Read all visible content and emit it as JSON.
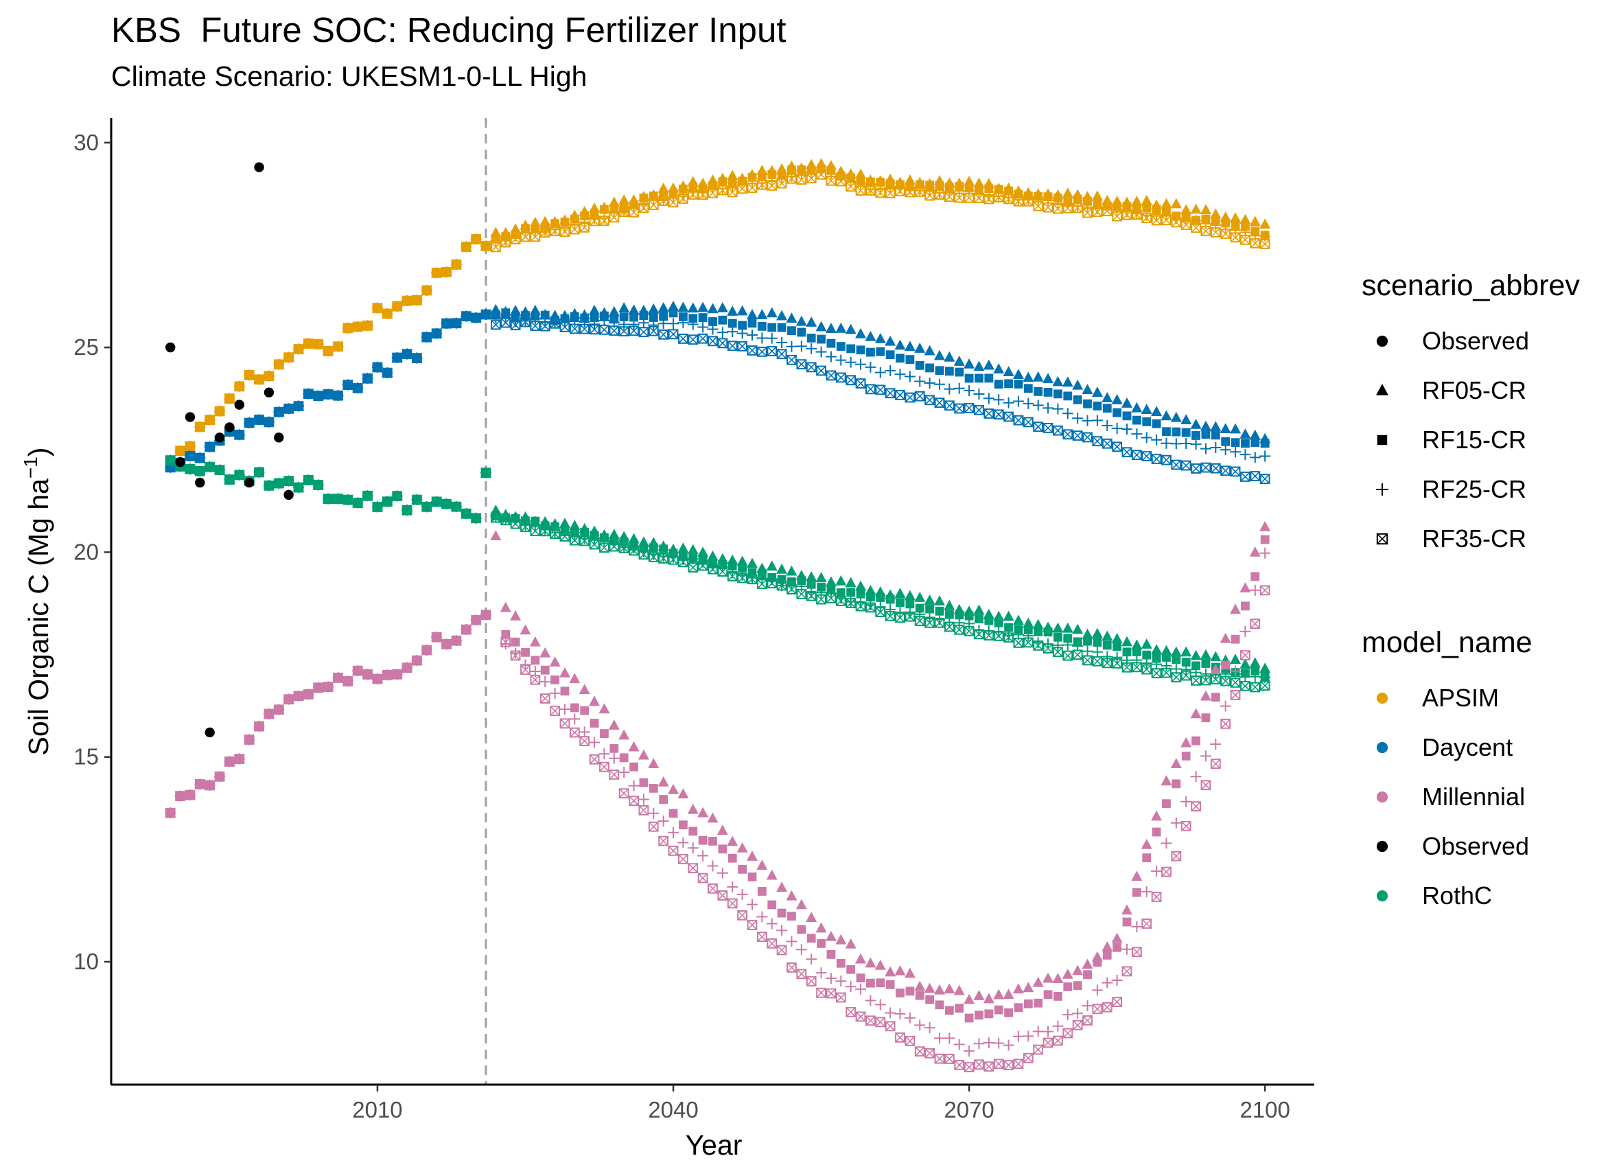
{
  "chart_data": {
    "type": "scatter",
    "title": "KBS  Future SOC: Reducing Fertilizer Input",
    "subtitle": "Climate Scenario: UKESM1-0-LL High",
    "xlabel": "Year",
    "ylabel_main": "Soil Organic C (Mg ha",
    "ylabel_sup": "−1",
    "ylabel_end": ")",
    "xlim": [
      1983,
      2105
    ],
    "ylim": [
      7.0,
      30.6
    ],
    "xticks": [
      2010,
      2040,
      2070,
      2100
    ],
    "yticks": [
      10,
      15,
      20,
      25,
      30
    ],
    "grid": false,
    "reference_line_x": 2021,
    "legend_position": "right",
    "legend_scenario": {
      "title": "scenario_abbrev",
      "items": [
        {
          "label": "Observed",
          "shape": "circle"
        },
        {
          "label": "RF05-CR",
          "shape": "triangle"
        },
        {
          "label": "RF15-CR",
          "shape": "square"
        },
        {
          "label": "RF25-CR",
          "shape": "plus"
        },
        {
          "label": "RF35-CR",
          "shape": "boxcross"
        }
      ]
    },
    "legend_model": {
      "title": "model_name",
      "items": [
        {
          "label": "APSIM",
          "color": "#E69F00"
        },
        {
          "label": "Daycent",
          "color": "#0072B2"
        },
        {
          "label": "Millennial",
          "color": "#CC79A7"
        },
        {
          "label": "Observed",
          "color": "#000000"
        },
        {
          "label": "RothC",
          "color": "#009E73"
        }
      ]
    },
    "observed": {
      "x": [
        1989,
        1990,
        1991,
        1992,
        1993,
        1994,
        1995,
        1996,
        1997,
        1998,
        1999,
        2000,
        2001
      ],
      "y": [
        25.0,
        22.2,
        23.3,
        21.7,
        15.6,
        22.8,
        23.05,
        23.6,
        21.7,
        29.4,
        23.9,
        22.8,
        21.4
      ]
    },
    "historical": {
      "APSIM": {
        "x": [
          1989,
          1992,
          1996,
          1999,
          2003,
          2006,
          2010,
          2013,
          2016,
          2020,
          2021
        ],
        "y": [
          22.0,
          23.0,
          24.2,
          24.3,
          25.0,
          25.1,
          25.9,
          26.0,
          26.7,
          27.5,
          27.4
        ]
      },
      "Daycent": {
        "x": [
          1989,
          1992,
          1996,
          1999,
          2003,
          2006,
          2010,
          2013,
          2016,
          2020,
          2021
        ],
        "y": [
          22.1,
          22.4,
          23.0,
          23.3,
          23.8,
          23.9,
          24.4,
          24.7,
          25.3,
          25.8,
          25.9
        ]
      },
      "RothC": {
        "x": [
          1989,
          1992,
          1996,
          1999,
          2003,
          2006,
          2010,
          2013,
          2016,
          2020,
          2021
        ],
        "y": [
          22.1,
          22.0,
          21.9,
          21.8,
          21.6,
          21.4,
          21.2,
          21.2,
          21.1,
          21.0,
          21.8
        ]
      },
      "Millennial": {
        "x": [
          1989,
          1992,
          1996,
          1999,
          2003,
          2006,
          2010,
          2013,
          2016,
          2020,
          2021
        ],
        "y": [
          13.8,
          14.2,
          15.0,
          16.0,
          16.6,
          16.9,
          17.0,
          17.2,
          17.8,
          18.2,
          18.5
        ]
      }
    },
    "projections": {
      "APSIM": {
        "RF05-CR": {
          "x": [
            2022,
            2030,
            2040,
            2050,
            2055,
            2060,
            2070,
            2080,
            2090,
            2100
          ],
          "y": [
            27.8,
            28.2,
            28.9,
            29.3,
            29.5,
            29.1,
            29.0,
            28.7,
            28.5,
            28.0
          ]
        },
        "RF15-CR": {
          "x": [
            2022,
            2030,
            2040,
            2050,
            2055,
            2060,
            2070,
            2080,
            2090,
            2100
          ],
          "y": [
            27.7,
            28.1,
            28.8,
            29.2,
            29.4,
            29.0,
            28.9,
            28.6,
            28.3,
            27.8
          ]
        },
        "RF25-CR": {
          "x": [
            2022,
            2030,
            2040,
            2050,
            2055,
            2060,
            2070,
            2080,
            2090,
            2100
          ],
          "y": [
            27.6,
            28.0,
            28.7,
            29.1,
            29.3,
            28.9,
            28.8,
            28.5,
            28.2,
            27.7
          ]
        },
        "RF35-CR": {
          "x": [
            2022,
            2030,
            2040,
            2050,
            2055,
            2060,
            2070,
            2080,
            2090,
            2100
          ],
          "y": [
            27.5,
            27.9,
            28.6,
            29.0,
            29.2,
            28.8,
            28.7,
            28.4,
            28.1,
            27.5
          ]
        }
      },
      "Daycent": {
        "RF05-CR": {
          "x": [
            2022,
            2030,
            2040,
            2050,
            2060,
            2070,
            2080,
            2090,
            2100
          ],
          "y": [
            25.9,
            25.8,
            26.0,
            25.8,
            25.3,
            24.6,
            24.1,
            23.3,
            22.8
          ]
        },
        "RF15-CR": {
          "x": [
            2022,
            2030,
            2040,
            2050,
            2060,
            2070,
            2080,
            2090,
            2100
          ],
          "y": [
            25.8,
            25.7,
            25.8,
            25.5,
            24.9,
            24.3,
            23.8,
            23.0,
            22.6
          ]
        },
        "RF25-CR": {
          "x": [
            2022,
            2030,
            2040,
            2050,
            2060,
            2070,
            2080,
            2090,
            2100
          ],
          "y": [
            25.7,
            25.6,
            25.6,
            25.2,
            24.5,
            23.9,
            23.4,
            22.7,
            22.3
          ]
        },
        "RF35-CR": {
          "x": [
            2022,
            2030,
            2040,
            2050,
            2060,
            2070,
            2080,
            2090,
            2100
          ],
          "y": [
            25.6,
            25.5,
            25.3,
            24.9,
            24.0,
            23.5,
            22.9,
            22.2,
            21.8
          ]
        }
      },
      "RothC": {
        "RF05-CR": {
          "x": [
            2022,
            2030,
            2040,
            2050,
            2060,
            2070,
            2080,
            2090,
            2100
          ],
          "y": [
            21.0,
            20.6,
            20.1,
            19.6,
            19.1,
            18.6,
            18.1,
            17.6,
            17.2
          ]
        },
        "RF15-CR": {
          "x": [
            2022,
            2030,
            2040,
            2050,
            2060,
            2070,
            2080,
            2090,
            2100
          ],
          "y": [
            20.9,
            20.5,
            20.0,
            19.4,
            18.9,
            18.4,
            17.9,
            17.4,
            17.0
          ]
        },
        "RF25-CR": {
          "x": [
            2022,
            2030,
            2040,
            2050,
            2060,
            2070,
            2080,
            2090,
            2100
          ],
          "y": [
            20.9,
            20.4,
            19.9,
            19.3,
            18.7,
            18.2,
            17.7,
            17.2,
            16.9
          ]
        },
        "RF35-CR": {
          "x": [
            2022,
            2030,
            2040,
            2050,
            2060,
            2070,
            2080,
            2090,
            2100
          ],
          "y": [
            20.8,
            20.3,
            19.8,
            19.2,
            18.6,
            18.1,
            17.5,
            17.0,
            16.7
          ]
        }
      },
      "Millennial": {
        "RF05-CR": {
          "x": [
            2022,
            2023,
            2026,
            2030,
            2035,
            2040,
            2045,
            2050,
            2055,
            2060,
            2065,
            2070,
            2075,
            2080,
            2085,
            2090,
            2095,
            2100
          ],
          "y": [
            20.3,
            18.7,
            17.9,
            16.8,
            15.6,
            14.2,
            13.2,
            12.1,
            10.8,
            10.0,
            9.5,
            9.1,
            9.3,
            9.7,
            10.5,
            14.3,
            17.1,
            20.6
          ]
        },
        "RF15-CR": {
          "x": [
            2023,
            2026,
            2030,
            2035,
            2040,
            2045,
            2050,
            2055,
            2060,
            2065,
            2070,
            2075,
            2080,
            2085,
            2090,
            2095,
            2100
          ],
          "y": [
            17.9,
            17.4,
            16.3,
            15.0,
            13.6,
            12.7,
            11.5,
            10.4,
            9.5,
            9.1,
            8.7,
            8.8,
            9.3,
            10.3,
            13.9,
            16.5,
            20.2
          ]
        },
        "RF25-CR": {
          "x": [
            2023,
            2026,
            2030,
            2035,
            2040,
            2045,
            2050,
            2055,
            2060,
            2065,
            2070,
            2075,
            2080,
            2085,
            2090,
            2095,
            2100
          ],
          "y": [
            17.8,
            17.1,
            15.9,
            14.6,
            13.1,
            12.1,
            10.9,
            9.8,
            9.1,
            8.4,
            7.9,
            8.1,
            8.6,
            9.6,
            13.0,
            15.4,
            19.9
          ]
        },
        "RF35-CR": {
          "x": [
            2023,
            2026,
            2030,
            2035,
            2040,
            2045,
            2050,
            2055,
            2060,
            2065,
            2070,
            2075,
            2080,
            2085,
            2090,
            2095,
            2100
          ],
          "y": [
            17.7,
            16.8,
            15.6,
            14.2,
            12.7,
            11.6,
            10.4,
            9.3,
            8.6,
            7.9,
            7.4,
            7.6,
            8.2,
            9.1,
            12.1,
            14.9,
            19.1
          ]
        }
      }
    },
    "colors": {
      "APSIM": "#E69F00",
      "Daycent": "#0072B2",
      "Millennial": "#CC79A7",
      "Observed": "#000000",
      "RothC": "#009E73",
      "reference_line": "#A0A0A0"
    }
  }
}
